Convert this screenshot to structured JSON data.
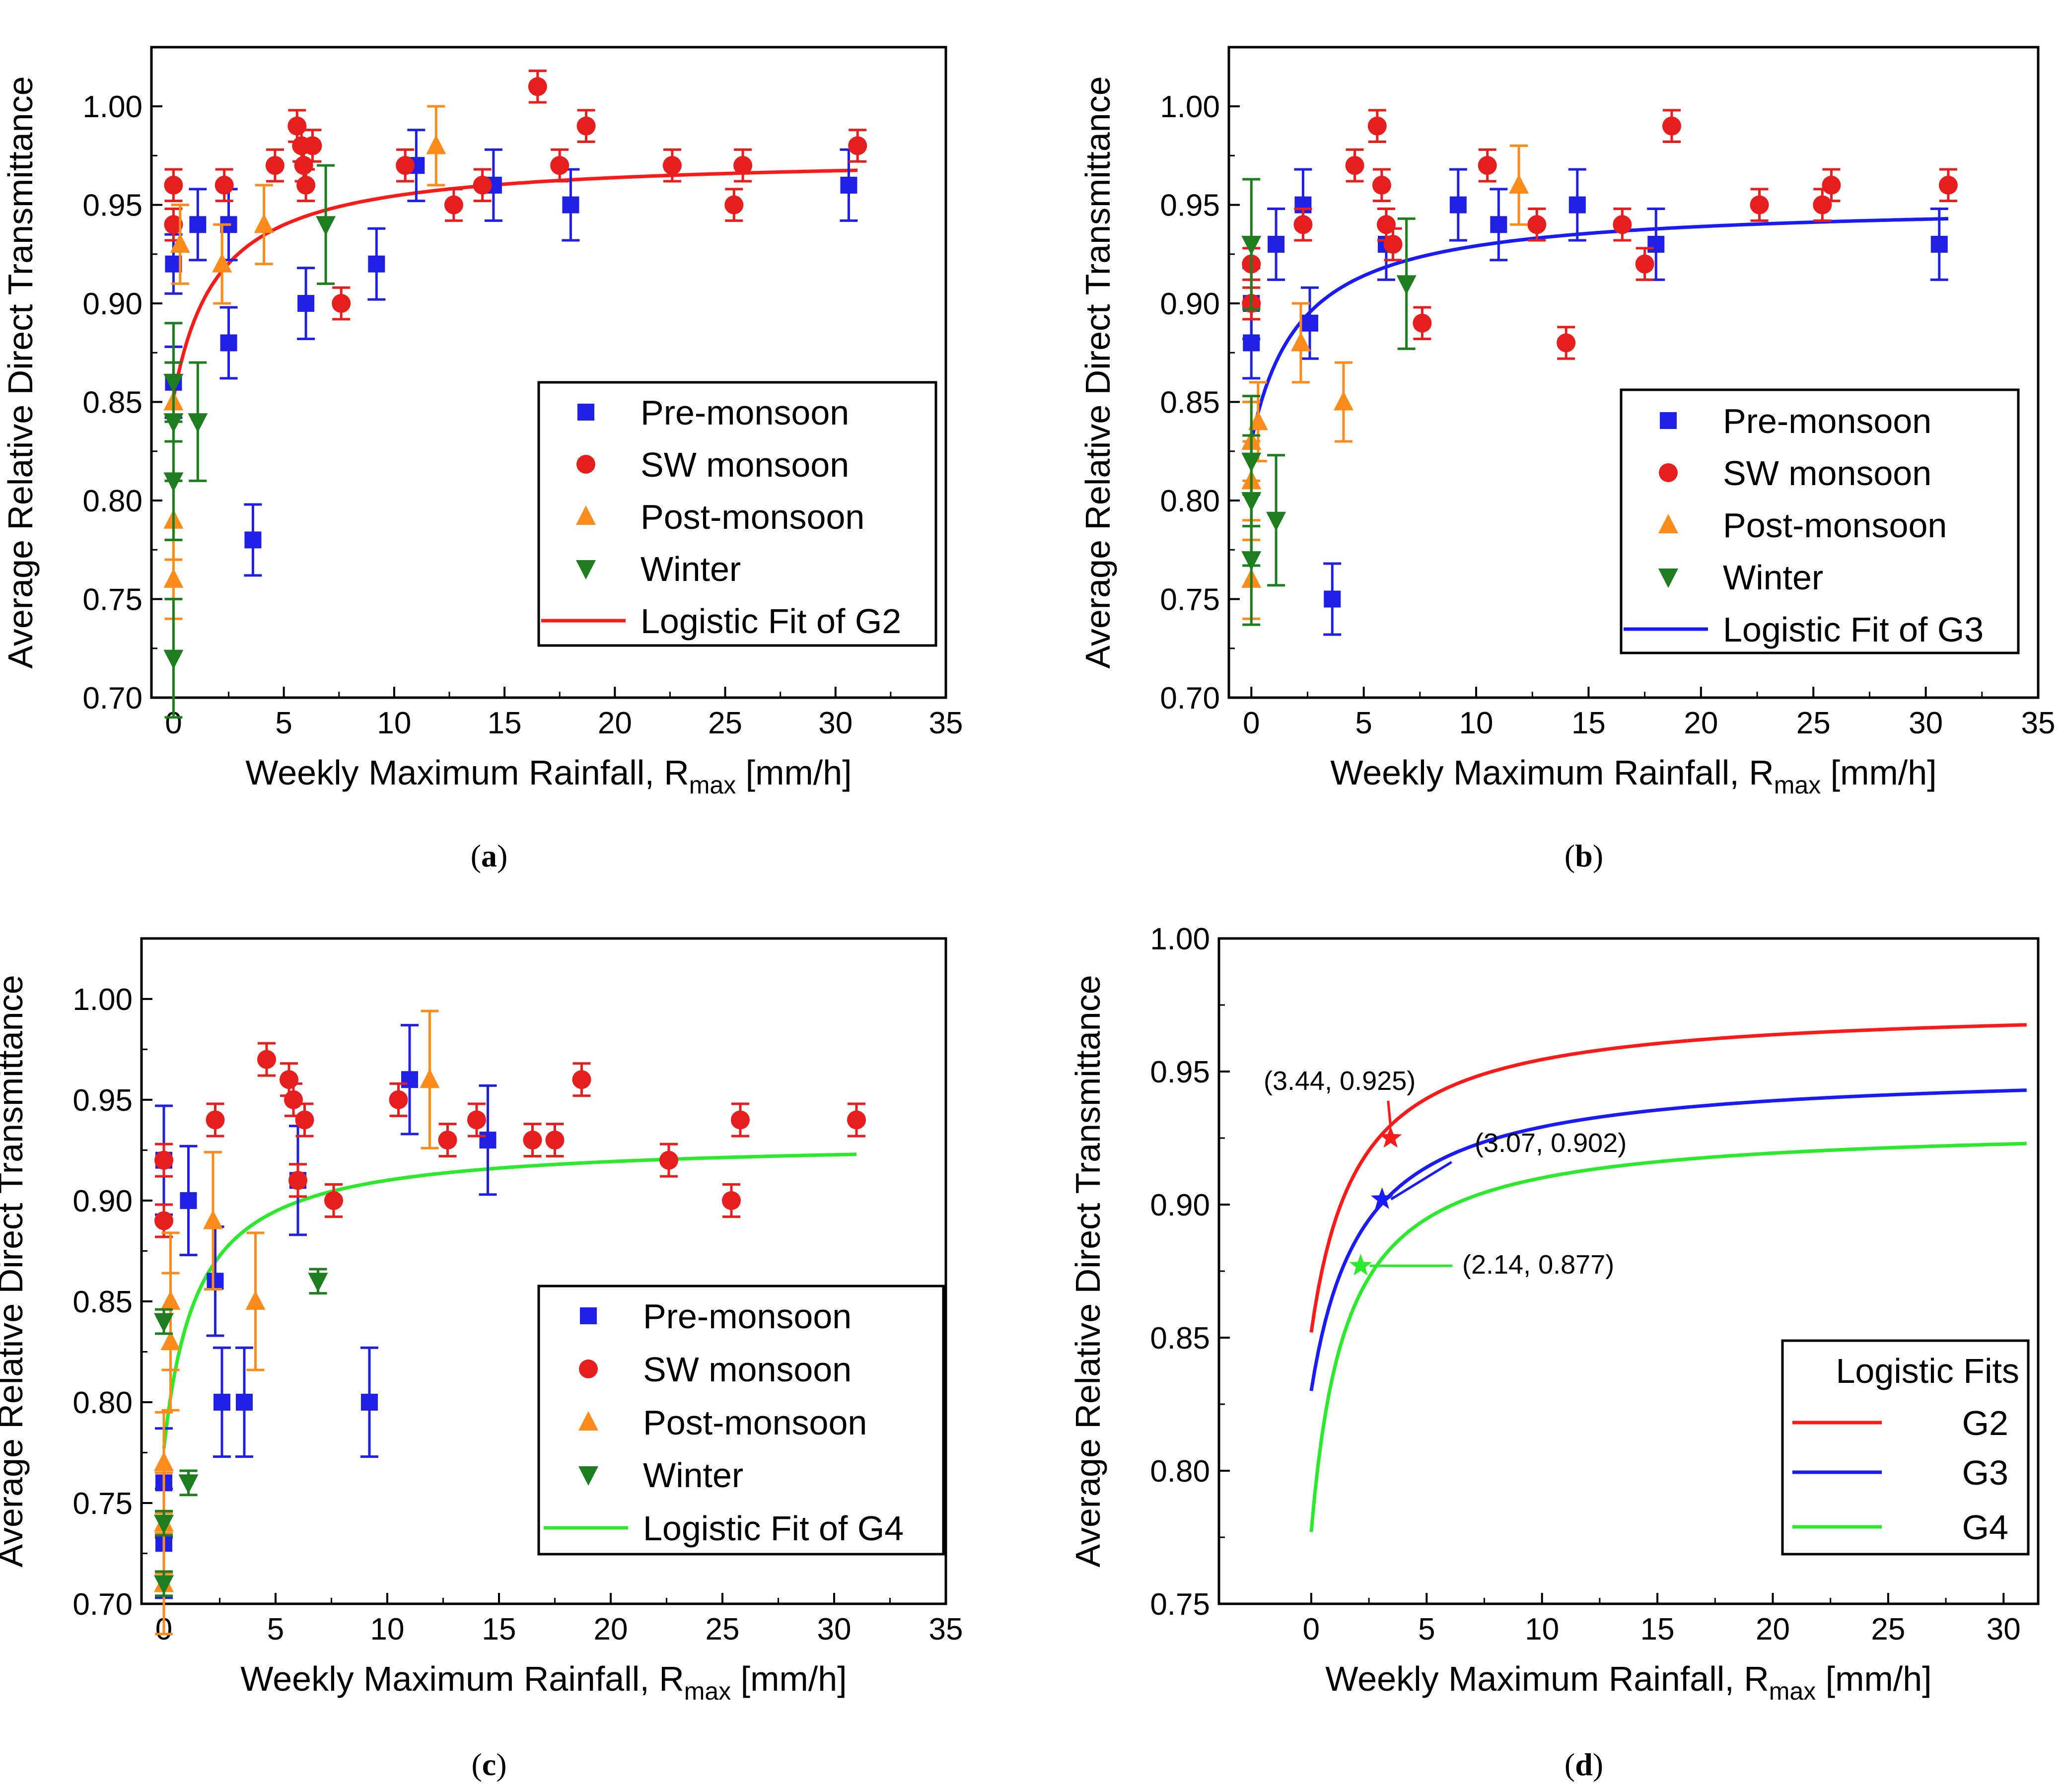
{
  "figure": {
    "colors": {
      "pre": "#1f1fe6",
      "sw": "#e61e1e",
      "post": "#ff8c1a",
      "winter": "#1e7d1e",
      "g2": "#ff1a1a",
      "g3": "#1a1aff",
      "g4": "#2bea2b"
    }
  },
  "chart_data": [
    {
      "id": "a",
      "type": "scatter",
      "panel_label": "a",
      "xlabel": "Weekly Maximum Rainfall, R",
      "xlabel_sub": "max",
      "xlabel_unit": " [mm/h]",
      "ylabel": "Average Relative Direct Transmittance",
      "xlim": [
        -1,
        35
      ],
      "ylim": [
        0.7,
        1.03
      ],
      "xticks": [
        0,
        5,
        10,
        15,
        20,
        25,
        30,
        35
      ],
      "yticks": [
        0.7,
        0.75,
        0.8,
        0.85,
        0.9,
        0.95,
        1.0
      ],
      "ytick_labels": [
        "0.70",
        "0.75",
        "0.80",
        "0.85",
        "0.90",
        "0.95",
        "1.00"
      ],
      "legend_position": "center-right",
      "legend": [
        "Pre-monsoon",
        "SW monsoon",
        "Post-monsoon",
        "Winter",
        "Logistic Fit of G2"
      ],
      "series": [
        {
          "name": "Pre-monsoon",
          "marker": "square",
          "color_key": "pre",
          "points": [
            [
              0,
              0.92,
              0.015
            ],
            [
              0,
              0.86,
              0.018
            ],
            [
              1.1,
              0.94,
              0.018
            ],
            [
              2.5,
              0.94,
              0.018
            ],
            [
              2.5,
              0.88,
              0.018
            ],
            [
              3.6,
              0.78,
              0.018
            ],
            [
              6,
              0.9,
              0.018
            ],
            [
              9.2,
              0.92,
              0.018
            ],
            [
              11,
              0.97,
              0.018
            ],
            [
              14.5,
              0.96,
              0.018
            ],
            [
              18,
              0.95,
              0.018
            ],
            [
              30.6,
              0.96,
              0.018
            ]
          ]
        },
        {
          "name": "SW monsoon",
          "marker": "circle",
          "color_key": "sw",
          "points": [
            [
              0,
              0.96,
              0.008
            ],
            [
              0,
              0.94,
              0.008
            ],
            [
              2.3,
              0.96,
              0.008
            ],
            [
              4.6,
              0.97,
              0.008
            ],
            [
              5.6,
              0.99,
              0.008
            ],
            [
              5.8,
              0.98,
              0.008
            ],
            [
              5.9,
              0.97,
              0.008
            ],
            [
              6,
              0.96,
              0.008
            ],
            [
              6.3,
              0.98,
              0.008
            ],
            [
              7.6,
              0.9,
              0.008
            ],
            [
              10.5,
              0.97,
              0.008
            ],
            [
              12.7,
              0.95,
              0.008
            ],
            [
              14,
              0.96,
              0.008
            ],
            [
              16.5,
              1.01,
              0.008
            ],
            [
              17.5,
              0.97,
              0.008
            ],
            [
              18.7,
              0.99,
              0.008
            ],
            [
              22.6,
              0.97,
              0.008
            ],
            [
              25.4,
              0.95,
              0.008
            ],
            [
              25.8,
              0.97,
              0.008
            ],
            [
              31,
              0.98,
              0.008
            ]
          ]
        },
        {
          "name": "Post-monsoon",
          "marker": "triangle-up",
          "color_key": "post",
          "points": [
            [
              0,
              0.85,
              0.02
            ],
            [
              0,
              0.79,
              0.02
            ],
            [
              0,
              0.76,
              0.02
            ],
            [
              0.3,
              0.93,
              0.02
            ],
            [
              2.2,
              0.92,
              0.02
            ],
            [
              4.1,
              0.94,
              0.02
            ],
            [
              11.9,
              0.98,
              0.02
            ]
          ]
        },
        {
          "name": "Winter",
          "marker": "triangle-down",
          "color_key": "winter",
          "points": [
            [
              0,
              0.86,
              0.03
            ],
            [
              0,
              0.84,
              0.03
            ],
            [
              0,
              0.81,
              0.03
            ],
            [
              0,
              0.72,
              0.03
            ],
            [
              1.1,
              0.84,
              0.03
            ],
            [
              6.9,
              0.94,
              0.03
            ]
          ]
        }
      ],
      "fit": {
        "name": "Logistic Fit of G2",
        "color_key": "g2",
        "x_range": [
          0,
          31
        ],
        "y_at_0": 0.852,
        "y_max": 0.975,
        "x_half": 2.0
      }
    },
    {
      "id": "b",
      "type": "scatter",
      "panel_label": "b",
      "xlabel": "Weekly Maximum Rainfall, R",
      "xlabel_sub": "max",
      "xlabel_unit": " [mm/h]",
      "ylabel": "Average Relative Direct Transmittance",
      "xlim": [
        -1,
        35
      ],
      "ylim": [
        0.7,
        1.03
      ],
      "xticks": [
        0,
        5,
        10,
        15,
        20,
        25,
        30,
        35
      ],
      "yticks": [
        0.7,
        0.75,
        0.8,
        0.85,
        0.9,
        0.95,
        1.0
      ],
      "ytick_labels": [
        "0.70",
        "0.75",
        "0.80",
        "0.85",
        "0.90",
        "0.95",
        "1.00"
      ],
      "legend_position": "bottom-right",
      "legend": [
        "Pre-monsoon",
        "SW monsoon",
        "Post-monsoon",
        "Winter",
        "Logistic Fit of G3"
      ],
      "series": [
        {
          "name": "Pre-monsoon",
          "marker": "square",
          "color_key": "pre",
          "points": [
            [
              0,
              0.9,
              0.018
            ],
            [
              0,
              0.88,
              0.018
            ],
            [
              1.1,
              0.93,
              0.018
            ],
            [
              2.3,
              0.95,
              0.018
            ],
            [
              2.6,
              0.89,
              0.018
            ],
            [
              3.6,
              0.75,
              0.018
            ],
            [
              6,
              0.93,
              0.018
            ],
            [
              9.2,
              0.95,
              0.018
            ],
            [
              11,
              0.94,
              0.018
            ],
            [
              14.5,
              0.95,
              0.018
            ],
            [
              18,
              0.93,
              0.018
            ],
            [
              30.6,
              0.93,
              0.018
            ]
          ]
        },
        {
          "name": "SW monsoon",
          "marker": "circle",
          "color_key": "sw",
          "points": [
            [
              0,
              0.92,
              0.008
            ],
            [
              0,
              0.9,
              0.008
            ],
            [
              2.3,
              0.94,
              0.008
            ],
            [
              4.6,
              0.97,
              0.008
            ],
            [
              5.6,
              0.99,
              0.008
            ],
            [
              5.8,
              0.96,
              0.008
            ],
            [
              6,
              0.94,
              0.008
            ],
            [
              6.3,
              0.93,
              0.008
            ],
            [
              7.6,
              0.89,
              0.008
            ],
            [
              10.5,
              0.97,
              0.008
            ],
            [
              12.7,
              0.94,
              0.008
            ],
            [
              14,
              0.88,
              0.008
            ],
            [
              16.5,
              0.94,
              0.008
            ],
            [
              17.5,
              0.92,
              0.008
            ],
            [
              18.7,
              0.99,
              0.008
            ],
            [
              22.6,
              0.95,
              0.008
            ],
            [
              25.4,
              0.95,
              0.008
            ],
            [
              25.8,
              0.96,
              0.008
            ],
            [
              31,
              0.96,
              0.008
            ]
          ]
        },
        {
          "name": "Post-monsoon",
          "marker": "triangle-up",
          "color_key": "post",
          "points": [
            [
              0,
              0.83,
              0.02
            ],
            [
              0,
              0.81,
              0.02
            ],
            [
              0,
              0.76,
              0.02
            ],
            [
              0.3,
              0.84,
              0.02
            ],
            [
              2.2,
              0.88,
              0.02
            ],
            [
              4.1,
              0.85,
              0.02
            ],
            [
              11.9,
              0.96,
              0.02
            ]
          ]
        },
        {
          "name": "Winter",
          "marker": "triangle-down",
          "color_key": "winter",
          "points": [
            [
              0,
              0.93,
              0.033
            ],
            [
              0,
              0.82,
              0.033
            ],
            [
              0,
              0.8,
              0.033
            ],
            [
              0,
              0.77,
              0.033
            ],
            [
              1.1,
              0.79,
              0.033
            ],
            [
              6.9,
              0.91,
              0.033
            ]
          ]
        }
      ],
      "fit": {
        "name": "Logistic Fit of G3",
        "color_key": "g3",
        "x_range": [
          0,
          31
        ],
        "y_at_0": 0.83,
        "y_max": 0.951,
        "x_half": 2.2
      }
    },
    {
      "id": "c",
      "type": "scatter",
      "panel_label": "c",
      "xlabel": "Weekly Maximum Rainfall, R",
      "xlabel_sub": "max",
      "xlabel_unit": " [mm/h]",
      "ylabel": "Average Relative Direct Transmittance",
      "xlim": [
        -1,
        35
      ],
      "ylim": [
        0.7,
        1.03
      ],
      "xticks": [
        0,
        5,
        10,
        15,
        20,
        25,
        30,
        35
      ],
      "yticks": [
        0.7,
        0.75,
        0.8,
        0.85,
        0.9,
        0.95,
        1.0
      ],
      "ytick_labels": [
        "0.70",
        "0.75",
        "0.80",
        "0.85",
        "0.90",
        "0.95",
        "1.00"
      ],
      "legend_position": "bottom-right",
      "legend": [
        "Pre-monsoon",
        "SW monsoon",
        "Post-monsoon",
        "Winter",
        "Logistic Fit of G4"
      ],
      "series": [
        {
          "name": "Pre-monsoon",
          "marker": "square",
          "color_key": "pre",
          "points": [
            [
              0,
              0.92,
              0.027
            ],
            [
              0,
              0.76,
              0.027
            ],
            [
              0,
              0.73,
              0.027
            ],
            [
              1.1,
              0.9,
              0.027
            ],
            [
              2.3,
              0.86,
              0.027
            ],
            [
              2.6,
              0.8,
              0.027
            ],
            [
              3.6,
              0.8,
              0.027
            ],
            [
              6,
              0.91,
              0.027
            ],
            [
              9.2,
              0.8,
              0.027
            ],
            [
              11,
              0.96,
              0.027
            ],
            [
              14.5,
              0.93,
              0.027
            ]
          ]
        },
        {
          "name": "SW monsoon",
          "marker": "circle",
          "color_key": "sw",
          "points": [
            [
              0,
              0.92,
              0.008
            ],
            [
              0,
              0.89,
              0.008
            ],
            [
              2.3,
              0.94,
              0.008
            ],
            [
              4.6,
              0.97,
              0.008
            ],
            [
              5.6,
              0.96,
              0.008
            ],
            [
              5.8,
              0.95,
              0.008
            ],
            [
              6,
              0.91,
              0.008
            ],
            [
              6.3,
              0.94,
              0.008
            ],
            [
              7.6,
              0.9,
              0.008
            ],
            [
              10.5,
              0.95,
              0.008
            ],
            [
              12.7,
              0.93,
              0.008
            ],
            [
              14,
              0.94,
              0.008
            ],
            [
              16.5,
              0.93,
              0.008
            ],
            [
              17.5,
              0.93,
              0.008
            ],
            [
              18.7,
              0.96,
              0.008
            ],
            [
              22.6,
              0.92,
              0.008
            ],
            [
              25.4,
              0.9,
              0.008
            ],
            [
              25.8,
              0.94,
              0.008
            ],
            [
              31,
              0.94,
              0.008
            ]
          ]
        },
        {
          "name": "Post-monsoon",
          "marker": "triangle-up",
          "color_key": "post",
          "points": [
            [
              0,
              0.77,
              0.025
            ],
            [
              0,
              0.74,
              0.025
            ],
            [
              0,
              0.71,
              0.025
            ],
            [
              0.3,
              0.85,
              0.034
            ],
            [
              0.3,
              0.83,
              0.034
            ],
            [
              2.2,
              0.89,
              0.034
            ],
            [
              4.1,
              0.85,
              0.034
            ],
            [
              11.9,
              0.96,
              0.034
            ]
          ]
        },
        {
          "name": "Winter",
          "marker": "triangle-down",
          "color_key": "winter",
          "points": [
            [
              0,
              0.84,
              0.006
            ],
            [
              0,
              0.74,
              0.006
            ],
            [
              0,
              0.71,
              0.006
            ],
            [
              1.1,
              0.76,
              0.006
            ],
            [
              6.9,
              0.86,
              0.006
            ]
          ]
        }
      ],
      "fit": {
        "name": "Logistic Fit of G4",
        "color_key": "g4",
        "x_range": [
          0,
          31
        ],
        "y_at_0": 0.777,
        "y_max": 0.93,
        "x_half": 1.5
      }
    },
    {
      "id": "d",
      "type": "line",
      "panel_label": "d",
      "xlabel": "Weekly Maximum Rainfall, R",
      "xlabel_sub": "max",
      "xlabel_unit": " [mm/h]",
      "ylabel": "Average Relative Direct Transmittance",
      "xlim": [
        -4,
        31.5
      ],
      "ylim": [
        0.75,
        1.0
      ],
      "xticks": [
        0,
        5,
        10,
        15,
        20,
        25,
        30
      ],
      "yticks": [
        0.75,
        0.8,
        0.85,
        0.9,
        0.95,
        1.0
      ],
      "ytick_labels": [
        "0.75",
        "0.80",
        "0.85",
        "0.90",
        "0.95",
        "1.00"
      ],
      "legend_position": "bottom-right",
      "legend_title": "Logistic Fits",
      "legend": [
        "G2",
        "G3",
        "G4"
      ],
      "fits": [
        {
          "name": "G2",
          "color_key": "g2",
          "x_range": [
            0,
            31
          ],
          "y_at_0": 0.852,
          "y_max": 0.975,
          "x_half": 2.0
        },
        {
          "name": "G3",
          "color_key": "g3",
          "x_range": [
            0,
            31
          ],
          "y_at_0": 0.83,
          "y_max": 0.951,
          "x_half": 2.2
        },
        {
          "name": "G4",
          "color_key": "g4",
          "x_range": [
            0,
            31
          ],
          "y_at_0": 0.777,
          "y_max": 0.93,
          "x_half": 1.5
        }
      ],
      "annotations": [
        {
          "text": "(3.44, 0.925)",
          "x": 3.44,
          "y": 0.925,
          "color_key": "g2"
        },
        {
          "text": "(3.07, 0.902)",
          "x": 3.07,
          "y": 0.902,
          "color_key": "g3"
        },
        {
          "text": "(2.14, 0.877)",
          "x": 2.14,
          "y": 0.877,
          "color_key": "g4"
        }
      ]
    }
  ]
}
